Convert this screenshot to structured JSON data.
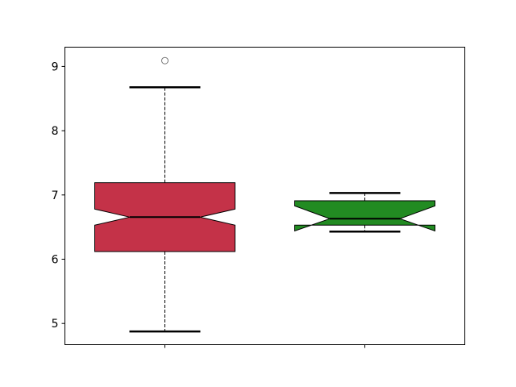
{
  "chart_data": {
    "type": "boxplot",
    "notched": true,
    "title": "",
    "xlabel": "",
    "ylabel": "",
    "ylim": [
      4.67,
      9.3
    ],
    "yticks": [
      5,
      6,
      7,
      8,
      9
    ],
    "xtick_labels": [
      "",
      ""
    ],
    "grid": false,
    "boxes": [
      {
        "q1": 6.12,
        "median": 6.655,
        "q3": 7.19,
        "notch_low": 6.53,
        "notch_high": 6.78,
        "whisker_low": 4.875,
        "whisker_high": 8.675,
        "outliers": [
          9.09
        ],
        "color": "#c43248"
      },
      {
        "q1": 6.53,
        "median": 6.63,
        "q3": 6.91,
        "notch_low": 6.44,
        "notch_high": 6.83,
        "whisker_low": 6.43,
        "whisker_high": 7.03,
        "outliers": [],
        "color": "#228b22"
      }
    ]
  }
}
